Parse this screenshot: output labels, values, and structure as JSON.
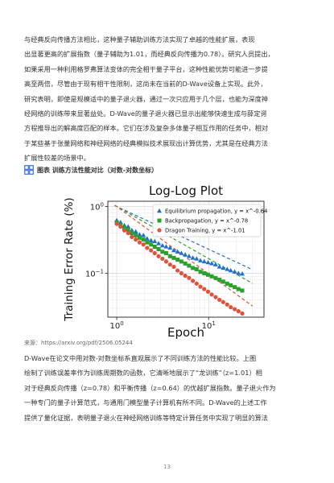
{
  "paragraph_top": [
    "与经典反向传播方法相比，这种量子辅助训练方法实现了卓越的性能扩展，表现",
    "出显著更高的扩展指数（量子辅助为1.01，而经典反向传播为0.78）。研究人员提出，",
    "如果采用一种利用格罗弗算法变体的完全相干量子平台，这种性能优势可能进一步提",
    "高至两倍，尽管由于现有相干性限制，这尚未在当前的D-Wave设备上实现。此外，",
    "研究表明，即使是规模适中的量子退火器，通过一次只应用于几个层，也能为深度神",
    "经网络的训练带来显著益处。D-Wave的量子退火器已显示出能够快速生成与薛定谔",
    "方程推导出的解高度匹配的样本。它们在涉及复杂多体量子相互作用的任务中，相对",
    "于某些基于张量网络和神经网络的经典模拟技术展现出计算优势，尤其是在经典方法",
    "扩展性较差的场景中。"
  ],
  "figure_heading": "图表 训练方法性能对比（对数-对数坐标）",
  "source": "来源：https://arxiv.org/pdf/2506.05244",
  "paragraph_bottom": [
    "D-Wave在论文中用对数-对数坐标系直观展示了不同训练方法的性能比较。上图",
    "绘制了训练误差率作为训练周期数的函数，它清晰地展示了“龙训练”（z=1.01）相",
    "对于经典反向传播（z=0.78）和平衡传播（z=0.64）的优越扩展指数。量子退火作为",
    "一种专门的量子计算范式，与通用门模型量子计算机有所不同。D-Wave的上述工作",
    "提供了量化证据，表明量子退火在神经网络训练等特定计算任务中实现了明显的算法"
  ],
  "page_number": "13",
  "icon_names": {
    "figure_heading_icon": "grid-chart-icon"
  },
  "chart_data": {
    "type": "scatter",
    "title": "Log-Log Plot",
    "xlabel": "Epoch",
    "ylabel": "Training Error Rate (%)",
    "xscale": "log",
    "yscale": "log",
    "xlim": [
      0.8,
      40
    ],
    "ylim": [
      0.022,
      1.2
    ],
    "x_ticks": [
      {
        "value": 1,
        "label": "10^0"
      },
      {
        "value": 10,
        "label": "10^1"
      }
    ],
    "y_ticks": [
      {
        "value": 1,
        "label": "10^0"
      },
      {
        "value": 0.1,
        "label": "10^-1"
      }
    ],
    "grid": true,
    "legend_position": "top-right",
    "series": [
      {
        "name": "Equilibrium propagation, y = x^-0.64",
        "marker": "triangle",
        "color": "#1f6fd0",
        "fit_exponent": -0.64,
        "x": [
          1.0,
          1.1,
          1.21,
          1.33,
          1.46,
          1.61,
          1.77,
          1.95,
          2.14,
          2.36,
          2.59,
          2.85,
          3.14,
          3.45,
          3.8,
          4.18,
          4.59,
          5.05,
          5.56,
          6.12,
          6.73,
          7.4,
          8.14,
          8.95,
          9.85,
          10.8,
          11.9,
          13.1,
          14.4,
          15.9,
          17.4,
          19.2,
          21.1,
          23.2
        ],
        "y": [
          0.62,
          0.58,
          0.52,
          0.5,
          0.44,
          0.42,
          0.38,
          0.37,
          0.33,
          0.31,
          0.3,
          0.28,
          0.26,
          0.25,
          0.24,
          0.22,
          0.21,
          0.2,
          0.19,
          0.18,
          0.17,
          0.165,
          0.155,
          0.15,
          0.145,
          0.14,
          0.135,
          0.125,
          0.12,
          0.115,
          0.11,
          0.105,
          0.1,
          0.098
        ]
      },
      {
        "name": "Backpropagation, y = x^-0.78",
        "marker": "square",
        "color": "#2ca02c",
        "fit_exponent": -0.78,
        "x": [
          1.0,
          1.1,
          1.21,
          1.33,
          1.46,
          1.61,
          1.77,
          1.95,
          2.14,
          2.36,
          2.59,
          2.85,
          3.14,
          3.45,
          3.8,
          4.18,
          4.59,
          5.05,
          5.56,
          6.12,
          6.73,
          7.4,
          8.14,
          8.95,
          9.85,
          10.8,
          11.9,
          13.1,
          14.4,
          15.9,
          17.4,
          19.2,
          21.1,
          23.2
        ],
        "y": [
          0.58,
          0.53,
          0.48,
          0.45,
          0.4,
          0.37,
          0.34,
          0.32,
          0.29,
          0.27,
          0.25,
          0.23,
          0.21,
          0.2,
          0.18,
          0.17,
          0.16,
          0.15,
          0.14,
          0.13,
          0.12,
          0.115,
          0.105,
          0.1,
          0.095,
          0.09,
          0.085,
          0.08,
          0.075,
          0.07,
          0.066,
          0.062,
          0.058,
          0.055
        ]
      },
      {
        "name": "Dragon Training, y = x^-1.01",
        "marker": "circle",
        "color": "#e0523a",
        "fit_exponent": -1.01,
        "x": [
          1.0,
          1.1,
          1.21,
          1.33,
          1.46,
          1.61,
          1.77,
          1.95,
          2.14,
          2.36,
          2.59,
          2.85,
          3.14,
          3.45,
          3.8,
          4.18,
          4.59,
          5.05,
          5.56,
          6.12,
          6.73,
          7.4,
          8.14,
          8.95,
          9.85,
          10.8,
          11.9,
          13.1,
          14.4,
          15.9,
          17.4,
          19.2,
          21.1,
          23.2
        ],
        "y": [
          0.55,
          0.5,
          0.44,
          0.4,
          0.35,
          0.32,
          0.29,
          0.27,
          0.24,
          0.22,
          0.2,
          0.18,
          0.165,
          0.15,
          0.135,
          0.125,
          0.11,
          0.1,
          0.092,
          0.085,
          0.077,
          0.07,
          0.063,
          0.058,
          0.053,
          0.048,
          0.044,
          0.04,
          0.037,
          0.034,
          0.031,
          0.029,
          0.027,
          0.025
        ]
      }
    ]
  }
}
